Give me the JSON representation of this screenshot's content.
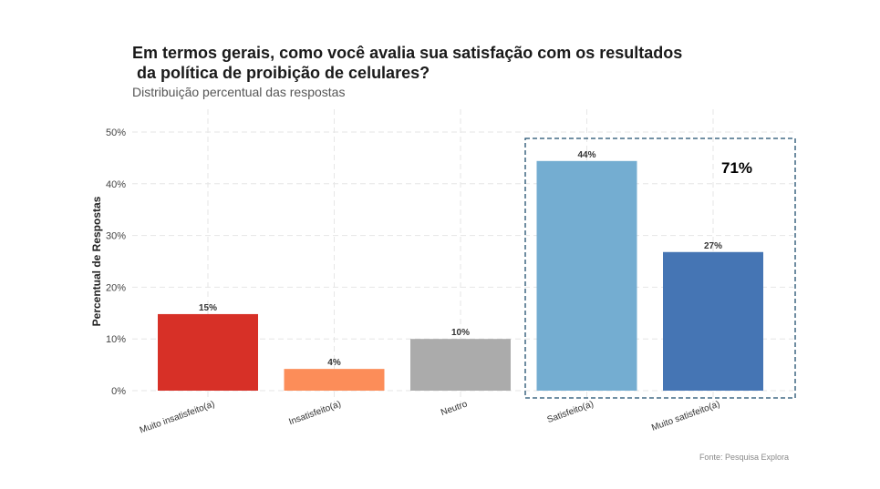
{
  "chart_data": {
    "type": "bar",
    "title_line1": "Em termos gerais, como você avalia sua satisfação com os resultados",
    "title_line2": " da política de proibição de celulares?",
    "subtitle": "Distribuição percentual das respostas",
    "xlabel": "",
    "ylabel": "Percentual de Respostas",
    "ylim": [
      0,
      50
    ],
    "yticks": [
      "0%",
      "10%",
      "20%",
      "30%",
      "40%",
      "50%"
    ],
    "grid": true,
    "categories": [
      "Muito insatisfeito(a)",
      "Insatisfeito(a)",
      "Neutro",
      "Satisfeito(a)",
      "Muito satisfeito(a)"
    ],
    "values": [
      14.8,
      4.2,
      10.0,
      44.4,
      26.8
    ],
    "data_labels": [
      "15%",
      "4%",
      "10%",
      "44%",
      "27%"
    ],
    "colors": [
      "#D73027",
      "#FC8D59",
      "#ABABAB",
      "#74ADD1",
      "#4575B4"
    ],
    "highlight": {
      "categories": [
        "Satisfeito(a)",
        "Muito satisfeito(a)"
      ],
      "label": "71%",
      "border_color": "#1F4E6E"
    },
    "caption": "Fonte: Pesquisa Explora"
  }
}
